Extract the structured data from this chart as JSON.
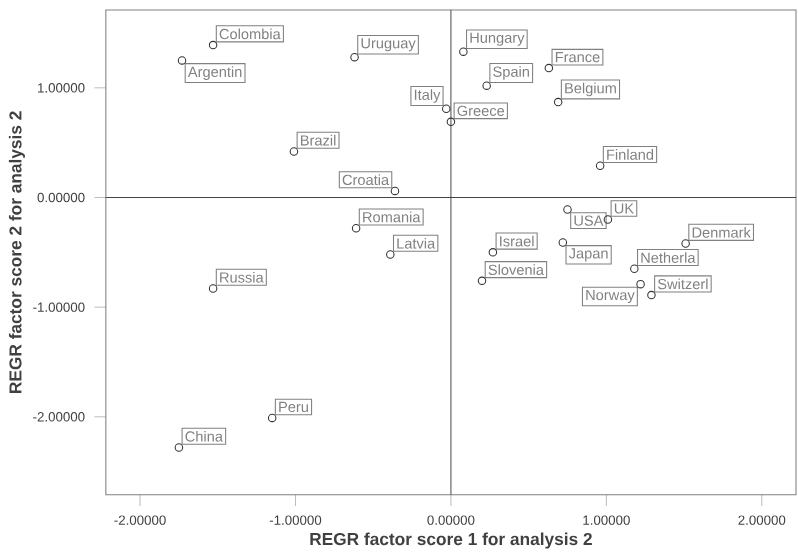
{
  "chart_data": {
    "type": "scatter",
    "xlabel": "REGR factor score   1 for analysis 2",
    "ylabel": "REGR factor score   2 for analysis 2",
    "xlim": [
      -2.22,
      2.22
    ],
    "ylim": [
      -2.71,
      1.71
    ],
    "xticks": [
      {
        "value": -2,
        "label": "-2.00000"
      },
      {
        "value": -1,
        "label": "-1.00000"
      },
      {
        "value": 0,
        "label": "0.00000"
      },
      {
        "value": 1,
        "label": "1.00000"
      },
      {
        "value": 2,
        "label": "2.00000"
      }
    ],
    "yticks": [
      {
        "value": -2,
        "label": "-2.00000"
      },
      {
        "value": -1,
        "label": "-1.00000"
      },
      {
        "value": 0,
        "label": "0.00000"
      },
      {
        "value": 1,
        "label": "1.00000"
      }
    ],
    "marker": "circle",
    "grid": false,
    "legend": false,
    "ref_lines": [
      {
        "axis": "x",
        "value": 0,
        "color": "#555555"
      },
      {
        "axis": "y",
        "value": 0,
        "color": "#444444"
      }
    ],
    "series": [
      {
        "color": "#333333",
        "x": [
          -1.53,
          -1.73,
          -1.01,
          -0.62,
          -0.61,
          -0.39,
          -1.53,
          -1.15,
          -1.75,
          0.08,
          0.63,
          0.23,
          0.69,
          -0.03,
          0.0,
          -0.36,
          0.96,
          0.75,
          0.72,
          1.01,
          1.51,
          0.27,
          1.18,
          0.2,
          1.22,
          1.29
        ],
        "values": [
          1.39,
          1.25,
          0.42,
          1.28,
          -0.28,
          -0.52,
          -0.83,
          -2.01,
          -2.28,
          1.33,
          1.18,
          1.02,
          0.87,
          0.81,
          0.69,
          0.06,
          0.29,
          -0.11,
          -0.41,
          -0.2,
          -0.42,
          -0.5,
          -0.65,
          -0.76,
          -0.79,
          -0.89
        ]
      }
    ],
    "annotations": [
      {
        "text": "Colombia",
        "x": -1.53,
        "y": 1.39
      },
      {
        "text": "Argentin",
        "x": -1.73,
        "y": 1.25
      },
      {
        "text": "Brazil",
        "x": -1.01,
        "y": 0.42
      },
      {
        "text": "Uruguay",
        "x": -0.62,
        "y": 1.28
      },
      {
        "text": "Romania",
        "x": -0.61,
        "y": -0.28
      },
      {
        "text": "Latvia",
        "x": -0.39,
        "y": -0.52
      },
      {
        "text": "Russia",
        "x": -1.53,
        "y": -0.83
      },
      {
        "text": "Peru",
        "x": -1.15,
        "y": -2.01
      },
      {
        "text": "China",
        "x": -1.75,
        "y": -2.28
      },
      {
        "text": "Hungary",
        "x": 0.08,
        "y": 1.33
      },
      {
        "text": "France",
        "x": 0.63,
        "y": 1.18
      },
      {
        "text": "Spain",
        "x": 0.23,
        "y": 1.02
      },
      {
        "text": "Belgium",
        "x": 0.69,
        "y": 0.87
      },
      {
        "text": "Italy",
        "x": -0.03,
        "y": 0.81
      },
      {
        "text": "Greece",
        "x": 0.0,
        "y": 0.69
      },
      {
        "text": "Croatia",
        "x": -0.36,
        "y": 0.06
      },
      {
        "text": "Finland",
        "x": 0.96,
        "y": 0.29
      },
      {
        "text": "USA",
        "x": 0.75,
        "y": -0.11
      },
      {
        "text": "Japan",
        "x": 0.72,
        "y": -0.41
      },
      {
        "text": "UK",
        "x": 1.01,
        "y": -0.2
      },
      {
        "text": "Denmark",
        "x": 1.51,
        "y": -0.42
      },
      {
        "text": "Israel",
        "x": 0.27,
        "y": -0.5
      },
      {
        "text": "Netherla",
        "x": 1.18,
        "y": -0.65
      },
      {
        "text": "Slovenia",
        "x": 0.2,
        "y": -0.76
      },
      {
        "text": "Norway",
        "x": 1.22,
        "y": -0.79
      },
      {
        "text": "Switzerl",
        "x": 1.29,
        "y": -0.89
      }
    ]
  }
}
